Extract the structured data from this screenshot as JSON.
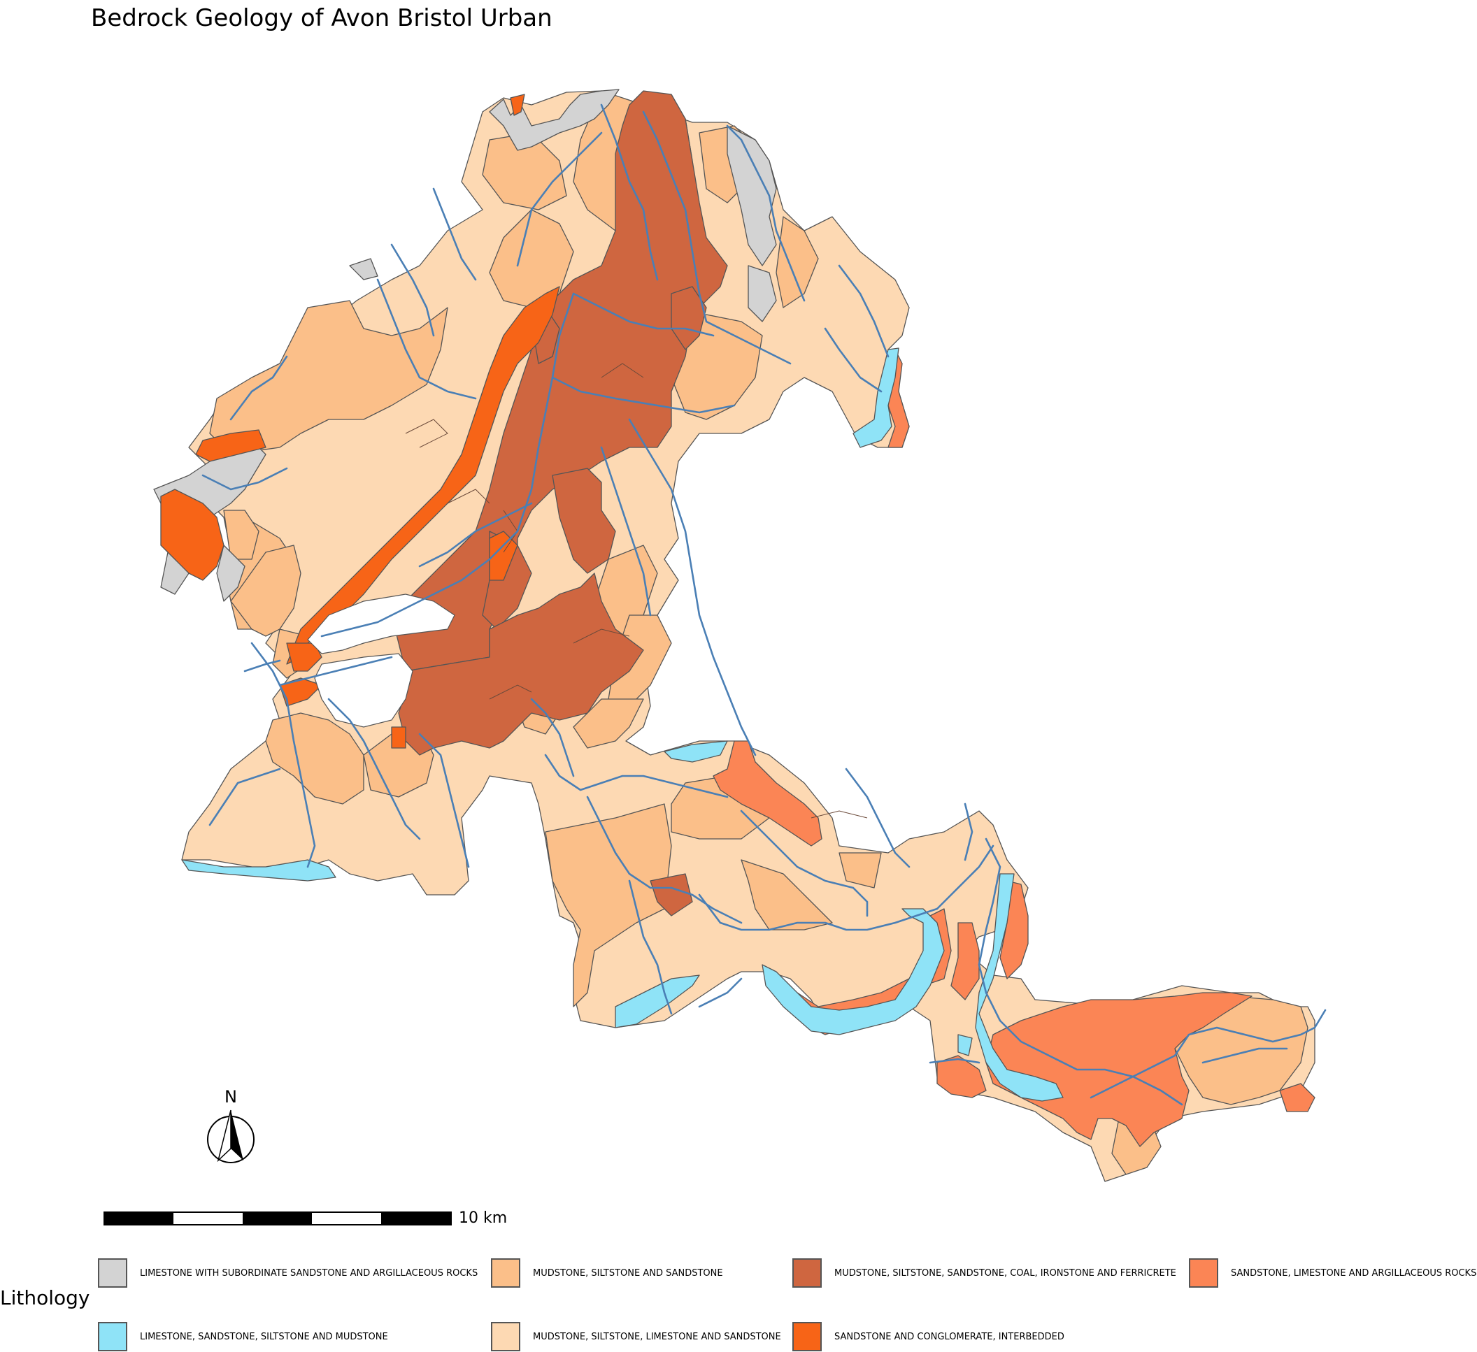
{
  "title": "Bedrock Geology of Avon Bristol Urban",
  "north_arrow": {
    "letter": "N"
  },
  "scale_bar": {
    "label": "10 km"
  },
  "legend": {
    "title": "Lithology",
    "items": [
      {
        "label": "LIMESTONE WITH SUBORDINATE SANDSTONE AND ARGILLACEOUS ROCKS",
        "color": "#d3d3d3"
      },
      {
        "label": "LIMESTONE, SANDSTONE, SILTSTONE AND MUDSTONE",
        "color": "#8fe3f7"
      },
      {
        "label": "MUDSTONE, SILTSTONE AND SANDSTONE",
        "color": "#fbbf89"
      },
      {
        "label": "MUDSTONE, SILTSTONE, LIMESTONE AND SANDSTONE",
        "color": "#fdd9b3"
      },
      {
        "label": "MUDSTONE, SILTSTONE, SANDSTONE, COAL, IRONSTONE AND FERRICRETE",
        "color": "#cf6640"
      },
      {
        "label": "SANDSTONE AND CONGLOMERATE, INTERBEDDED",
        "color": "#f76417"
      },
      {
        "label": "SANDSTONE, LIMESTONE AND ARGILLACEOUS ROCKS",
        "color": "#fb8555"
      }
    ]
  },
  "colors": {
    "river": "#4a7fb5",
    "outline": "#555555"
  }
}
